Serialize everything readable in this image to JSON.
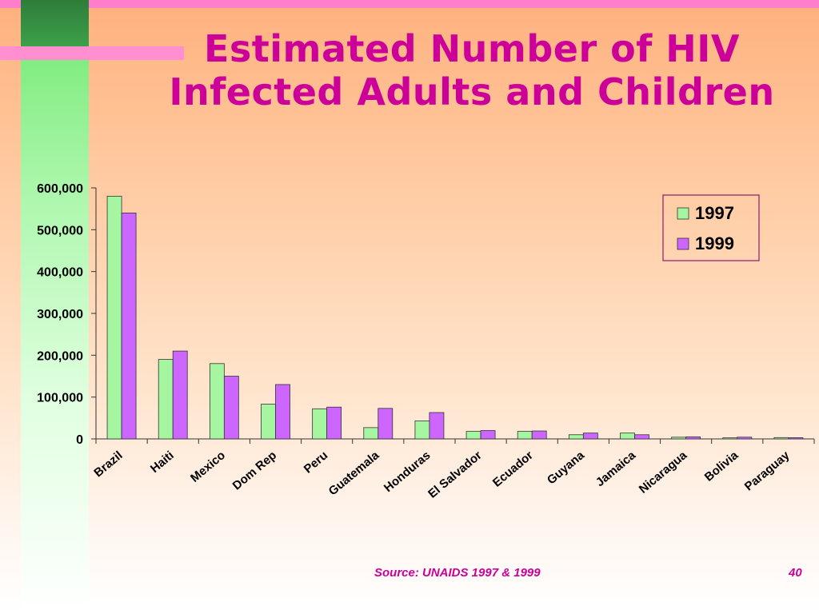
{
  "slide": {
    "title_line1": "Estimated Number of HIV",
    "title_line2": "Infected Adults and Children",
    "source": "Source:  UNAIDS 1997 & 1999",
    "page_number": "40"
  },
  "colors": {
    "title": "#cc0099",
    "series_1997": "#a6f5a0",
    "series_1999": "#cc66ff",
    "legend_border": "#8b1a6b"
  },
  "chart_data": {
    "type": "bar",
    "title": "Estimated Number of HIV Infected Adults and Children",
    "xlabel": "",
    "ylabel": "",
    "categories": [
      "Brazil",
      "Haiti",
      "Mexico",
      "Dom Rep",
      "Peru",
      "Guatemala",
      "Honduras",
      "El Salvador",
      "Ecuador",
      "Guyana",
      "Jamaica",
      "Nicaragua",
      "Bolivia",
      "Paraguay"
    ],
    "series": [
      {
        "name": "1997",
        "values": [
          580000,
          190000,
          180000,
          83000,
          72000,
          27000,
          43000,
          18000,
          18000,
          10000,
          14000,
          4100,
          2600,
          3200
        ],
        "color": "#a6f5a0"
      },
      {
        "name": "1999",
        "values": [
          540000,
          210000,
          150000,
          130000,
          76000,
          73000,
          63000,
          20000,
          19000,
          14000,
          10000,
          4900,
          4200,
          3000
        ],
        "color": "#cc66ff"
      }
    ],
    "ylim": [
      0,
      600000
    ],
    "yticks": [
      "0",
      "100,000",
      "200,000",
      "300,000",
      "400,000",
      "500,000",
      "600,000"
    ],
    "legend_position": "top-right",
    "grid": false
  }
}
